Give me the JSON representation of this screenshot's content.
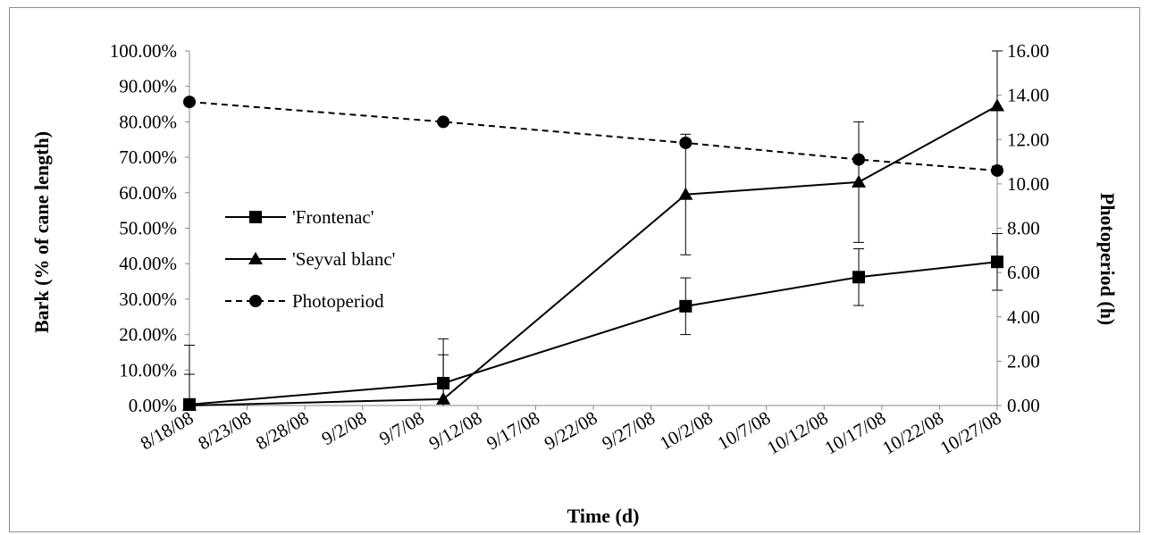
{
  "chart_data": {
    "type": "line",
    "title": "",
    "xlabel": "Time (d)",
    "ylabel": "Bark (% of cane length)",
    "y2label": "Photoperiod (h)",
    "x_ticks": [
      "8/18/08",
      "8/23/08",
      "8/28/08",
      "9/2/08",
      "9/7/08",
      "9/12/08",
      "9/17/08",
      "9/22/08",
      "9/27/08",
      "10/2/08",
      "10/7/08",
      "10/12/08",
      "10/17/08",
      "10/22/08",
      "10/27/08"
    ],
    "y_ticks": [
      "0.00%",
      "10.00%",
      "20.00%",
      "30.00%",
      "40.00%",
      "50.00%",
      "60.00%",
      "70.00%",
      "80.00%",
      "90.00%",
      "100.00%"
    ],
    "y2_ticks": [
      "0.00",
      "2.00",
      "4.00",
      "6.00",
      "8.00",
      "10.00",
      "12.00",
      "14.00",
      "16.00"
    ],
    "x_range": [
      "8/18/08",
      "10/27/08"
    ],
    "ylim": [
      0,
      1
    ],
    "y2lim": [
      0,
      16
    ],
    "grid": false,
    "legend_position": "left-middle",
    "series": [
      {
        "name": "'Frontenac'",
        "axis": "left",
        "marker": "square",
        "line": "solid",
        "x": [
          "8/18/08",
          "9/9/08",
          "9/30/08",
          "10/15/08",
          "10/27/08"
        ],
        "y": [
          0.003,
          0.063,
          0.28,
          0.362,
          0.405
        ],
        "error": [
          0.085,
          0.08,
          0.08,
          0.08,
          0.08
        ]
      },
      {
        "name": "'Seyval blanc'",
        "axis": "left",
        "marker": "triangle",
        "line": "solid",
        "x": [
          "8/18/08",
          "9/9/08",
          "9/30/08",
          "10/15/08",
          "10/27/08"
        ],
        "y": [
          0.0,
          0.018,
          0.595,
          0.63,
          0.845
        ],
        "error": [
          0.17,
          0.17,
          0.17,
          0.17,
          0.17
        ]
      },
      {
        "name": "Photoperiod",
        "axis": "right",
        "marker": "circle",
        "line": "dashed",
        "x": [
          "8/18/08",
          "9/9/08",
          "9/30/08",
          "10/15/08",
          "10/27/08"
        ],
        "y": [
          13.7,
          12.8,
          11.85,
          11.1,
          10.6
        ]
      }
    ]
  }
}
